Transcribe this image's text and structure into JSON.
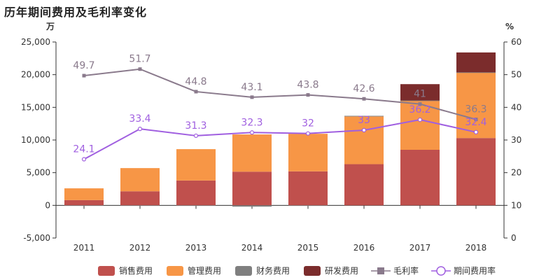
{
  "title": "历年期间费用及毛利率变化",
  "chart_data": {
    "type": "bar",
    "categories": [
      "2011",
      "2012",
      "2013",
      "2014",
      "2015",
      "2016",
      "2017",
      "2018"
    ],
    "left_axis": {
      "unit": "万",
      "min": -5000,
      "max": 25000,
      "step": 5000,
      "tick_labels": [
        "-5,000",
        "0",
        "5,000",
        "10,000",
        "15,000",
        "20,000",
        "25,000"
      ]
    },
    "right_axis": {
      "unit": "%",
      "min": 0,
      "max": 60,
      "step": 10,
      "tick_labels": [
        "0",
        "10",
        "20",
        "30",
        "40",
        "50",
        "60"
      ]
    },
    "grid": false,
    "legend_position": "bottom",
    "series": [
      {
        "name": "销售费用",
        "type": "bar",
        "stack": "a",
        "color": "#c0504d",
        "values": [
          800,
          2150,
          3800,
          5150,
          5200,
          6300,
          8500,
          10300
        ]
      },
      {
        "name": "管理费用",
        "type": "bar",
        "stack": "a",
        "color": "#f79646",
        "values": [
          1800,
          3550,
          4800,
          5700,
          5750,
          7300,
          7500,
          10000
        ]
      },
      {
        "name": "财务费用",
        "type": "bar",
        "stack": "a",
        "color": "#7f7f7f",
        "values": [
          -50,
          -50,
          -50,
          -200,
          -50,
          100,
          50,
          50
        ]
      },
      {
        "name": "研发费用",
        "type": "bar",
        "stack": "a",
        "color": "#7b2c2c",
        "values": [
          0,
          0,
          0,
          0,
          0,
          0,
          2500,
          3050
        ]
      },
      {
        "name": "毛利率",
        "type": "line",
        "axis": "right",
        "color": "#8a7a8c",
        "marker": "square",
        "values": [
          49.7,
          51.7,
          44.8,
          43.1,
          43.8,
          42.6,
          41,
          36.3
        ],
        "labels": [
          "49.7",
          "51.7",
          "44.8",
          "43.1",
          "43.8",
          "42.6",
          "41",
          "36.3"
        ]
      },
      {
        "name": "期间费用率",
        "type": "line",
        "axis": "right",
        "color": "#a05fe0",
        "marker": "circle",
        "values": [
          24.1,
          33.4,
          31.3,
          32.3,
          32,
          33,
          36.2,
          32.4
        ],
        "labels": [
          "24.1",
          "33.4",
          "31.3",
          "32.3",
          "32",
          "33",
          "36.2",
          "32.4"
        ]
      }
    ]
  }
}
